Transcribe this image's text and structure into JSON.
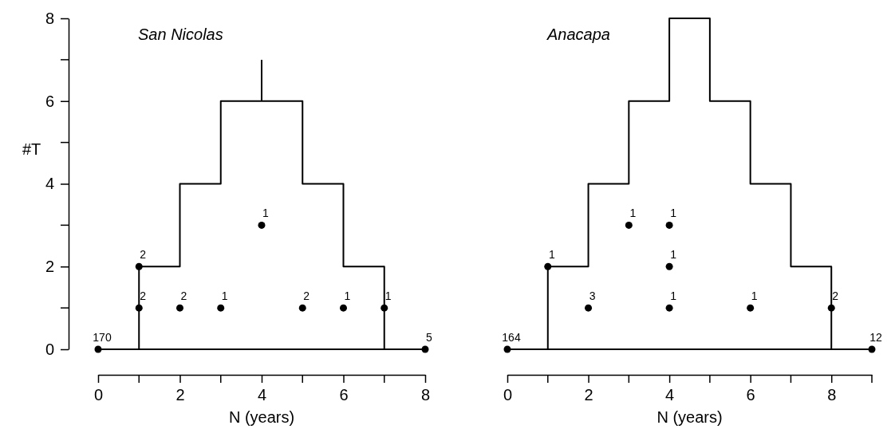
{
  "chart_data": [
    {
      "type": "scatter",
      "title": "San Nicolas",
      "xlabel": "N (years)",
      "ylabel": "#T",
      "xlim": [
        0,
        8
      ],
      "ylim": [
        0,
        8
      ],
      "xticks": [
        0,
        2,
        4,
        6,
        8
      ],
      "yticks": [
        0,
        2,
        4,
        6,
        8
      ],
      "grid": false,
      "series": [
        {
          "type": "step",
          "color": "#000000",
          "x": [
            1,
            1,
            2,
            3,
            5,
            6,
            7
          ],
          "values": [
            0,
            2,
            4,
            6,
            4,
            2,
            0
          ],
          "marker": "none"
        },
        {
          "type": "line",
          "color": "#000000",
          "x": [
            0,
            8
          ],
          "values": [
            0,
            0
          ],
          "marker": "none"
        },
        {
          "type": "line",
          "color": "#000000",
          "x": [
            4,
            4
          ],
          "values": [
            6,
            7
          ],
          "marker": "none"
        },
        {
          "color": "#000000",
          "marker": "circle",
          "x": [
            0,
            1,
            1,
            2,
            3,
            4,
            5,
            6,
            7,
            8
          ],
          "values": [
            0,
            2,
            1,
            1,
            1,
            3,
            1,
            1,
            1,
            0
          ]
        }
      ],
      "annotations": [
        {
          "text": "170",
          "x": 0,
          "y": 0
        },
        {
          "text": "2",
          "x": 1,
          "y": 2
        },
        {
          "text": "2",
          "x": 1,
          "y": 1
        },
        {
          "text": "2",
          "x": 2,
          "y": 1
        },
        {
          "text": "1",
          "x": 3,
          "y": 1
        },
        {
          "text": "1",
          "x": 4,
          "y": 3
        },
        {
          "text": "2",
          "x": 5,
          "y": 1
        },
        {
          "text": "1",
          "x": 6,
          "y": 1
        },
        {
          "text": "1",
          "x": 7,
          "y": 1
        },
        {
          "text": "5",
          "x": 8,
          "y": 0
        }
      ]
    },
    {
      "type": "scatter",
      "title": "Anacapa",
      "xlabel": "N (years)",
      "xlim": [
        0,
        9
      ],
      "ylim": [
        0,
        8
      ],
      "tick_labels": "x",
      "xticks": [
        0,
        2,
        4,
        6,
        8
      ],
      "grid": false,
      "series": [
        {
          "type": "step",
          "color": "#000000",
          "x": [
            1,
            1,
            2,
            3,
            4,
            5,
            6,
            7,
            8
          ],
          "values": [
            0,
            2,
            4,
            6,
            8,
            6,
            4,
            2,
            0
          ],
          "marker": "none"
        },
        {
          "type": "line",
          "color": "#000000",
          "x": [
            0,
            9
          ],
          "values": [
            0,
            0
          ],
          "marker": "none"
        },
        {
          "color": "#000000",
          "marker": "circle",
          "x": [
            0,
            1,
            2,
            3,
            4,
            4,
            4,
            6,
            8,
            9
          ],
          "values": [
            0,
            2,
            1,
            3,
            3,
            2,
            1,
            1,
            1,
            0
          ]
        }
      ],
      "annotations": [
        {
          "text": "164",
          "x": 0,
          "y": 0
        },
        {
          "text": "1",
          "x": 1,
          "y": 2
        },
        {
          "text": "3",
          "x": 2,
          "y": 1
        },
        {
          "text": "1",
          "x": 3,
          "y": 3
        },
        {
          "text": "1",
          "x": 4,
          "y": 3
        },
        {
          "text": "1",
          "x": 4,
          "y": 2
        },
        {
          "text": "1",
          "x": 4,
          "y": 1
        },
        {
          "text": "1",
          "x": 6,
          "y": 1
        },
        {
          "text": "2",
          "x": 8,
          "y": 1
        },
        {
          "text": "12",
          "x": 9,
          "y": 0
        }
      ]
    }
  ]
}
